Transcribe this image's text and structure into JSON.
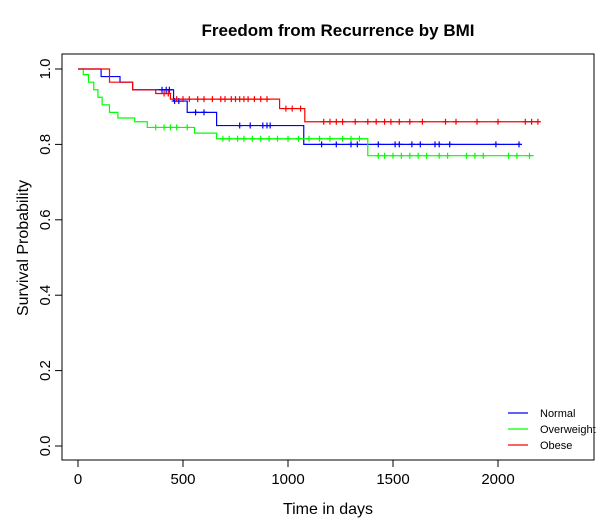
{
  "chart_data": {
    "type": "line",
    "title": "Freedom from Recurrence by BMI",
    "xlabel": "Time in days",
    "ylabel": "Survival Probability",
    "xlim": [
      0,
      2200
    ],
    "ylim": [
      0,
      1
    ],
    "x_ticks": [
      0,
      500,
      1000,
      1500,
      2000
    ],
    "x_tick_labels": [
      "0",
      "500",
      "1000",
      "1500",
      "2000"
    ],
    "y_ticks": [
      0,
      0.2,
      0.4,
      0.6,
      0.8,
      1.0
    ],
    "y_tick_labels": [
      "0.0",
      "0.2",
      "0.4",
      "0.6",
      "0.8",
      "1.0"
    ],
    "grid": false,
    "legend_position": "bottom-right",
    "series": [
      {
        "name": "Normal",
        "color": "#0000ff",
        "steps": [
          [
            0,
            1.0
          ],
          [
            110,
            0.98
          ],
          [
            200,
            0.965
          ],
          [
            260,
            0.945
          ],
          [
            455,
            0.915
          ],
          [
            520,
            0.885
          ],
          [
            660,
            0.85
          ],
          [
            850,
            0.85
          ],
          [
            1075,
            0.8
          ],
          [
            2110,
            0.8
          ]
        ],
        "censored": [
          [
            400,
            0.945
          ],
          [
            420,
            0.945
          ],
          [
            435,
            0.945
          ],
          [
            460,
            0.915
          ],
          [
            480,
            0.915
          ],
          [
            560,
            0.885
          ],
          [
            600,
            0.885
          ],
          [
            770,
            0.85
          ],
          [
            820,
            0.85
          ],
          [
            880,
            0.85
          ],
          [
            900,
            0.85
          ],
          [
            915,
            0.85
          ],
          [
            1160,
            0.8
          ],
          [
            1230,
            0.8
          ],
          [
            1300,
            0.8
          ],
          [
            1330,
            0.8
          ],
          [
            1430,
            0.8
          ],
          [
            1510,
            0.8
          ],
          [
            1530,
            0.8
          ],
          [
            1590,
            0.8
          ],
          [
            1630,
            0.8
          ],
          [
            1700,
            0.8
          ],
          [
            1720,
            0.8
          ],
          [
            1770,
            0.8
          ],
          [
            1990,
            0.8
          ],
          [
            2100,
            0.8
          ]
        ]
      },
      {
        "name": "Overweight",
        "color": "#00ff00",
        "steps": [
          [
            0,
            1.0
          ],
          [
            25,
            0.985
          ],
          [
            50,
            0.965
          ],
          [
            75,
            0.945
          ],
          [
            95,
            0.925
          ],
          [
            115,
            0.905
          ],
          [
            150,
            0.885
          ],
          [
            190,
            0.87
          ],
          [
            270,
            0.86
          ],
          [
            330,
            0.845
          ],
          [
            555,
            0.83
          ],
          [
            660,
            0.815
          ],
          [
            1380,
            0.77
          ],
          [
            2170,
            0.77
          ]
        ],
        "censored": [
          [
            370,
            0.845
          ],
          [
            410,
            0.845
          ],
          [
            440,
            0.845
          ],
          [
            470,
            0.845
          ],
          [
            520,
            0.845
          ],
          [
            690,
            0.815
          ],
          [
            720,
            0.815
          ],
          [
            760,
            0.815
          ],
          [
            790,
            0.815
          ],
          [
            830,
            0.815
          ],
          [
            870,
            0.815
          ],
          [
            910,
            0.815
          ],
          [
            950,
            0.815
          ],
          [
            1000,
            0.815
          ],
          [
            1050,
            0.815
          ],
          [
            1100,
            0.815
          ],
          [
            1150,
            0.815
          ],
          [
            1200,
            0.815
          ],
          [
            1260,
            0.815
          ],
          [
            1300,
            0.815
          ],
          [
            1340,
            0.815
          ],
          [
            1430,
            0.77
          ],
          [
            1460,
            0.77
          ],
          [
            1500,
            0.77
          ],
          [
            1540,
            0.77
          ],
          [
            1580,
            0.77
          ],
          [
            1620,
            0.77
          ],
          [
            1660,
            0.77
          ],
          [
            1720,
            0.77
          ],
          [
            1760,
            0.77
          ],
          [
            1850,
            0.77
          ],
          [
            1890,
            0.77
          ],
          [
            1930,
            0.77
          ],
          [
            2050,
            0.77
          ],
          [
            2090,
            0.77
          ],
          [
            2150,
            0.77
          ]
        ]
      },
      {
        "name": "Obese",
        "color": "#ff0000",
        "steps": [
          [
            0,
            1.0
          ],
          [
            150,
            0.965
          ],
          [
            260,
            0.945
          ],
          [
            370,
            0.935
          ],
          [
            440,
            0.92
          ],
          [
            960,
            0.895
          ],
          [
            1080,
            0.86
          ],
          [
            2200,
            0.86
          ]
        ],
        "censored": [
          [
            410,
            0.935
          ],
          [
            430,
            0.935
          ],
          [
            470,
            0.92
          ],
          [
            500,
            0.92
          ],
          [
            530,
            0.92
          ],
          [
            570,
            0.92
          ],
          [
            600,
            0.92
          ],
          [
            640,
            0.92
          ],
          [
            680,
            0.92
          ],
          [
            700,
            0.92
          ],
          [
            730,
            0.92
          ],
          [
            750,
            0.92
          ],
          [
            770,
            0.92
          ],
          [
            790,
            0.92
          ],
          [
            810,
            0.92
          ],
          [
            840,
            0.92
          ],
          [
            870,
            0.92
          ],
          [
            900,
            0.92
          ],
          [
            990,
            0.895
          ],
          [
            1020,
            0.895
          ],
          [
            1060,
            0.895
          ],
          [
            1170,
            0.86
          ],
          [
            1200,
            0.86
          ],
          [
            1230,
            0.86
          ],
          [
            1260,
            0.86
          ],
          [
            1320,
            0.86
          ],
          [
            1380,
            0.86
          ],
          [
            1420,
            0.86
          ],
          [
            1460,
            0.86
          ],
          [
            1490,
            0.86
          ],
          [
            1530,
            0.86
          ],
          [
            1580,
            0.86
          ],
          [
            1640,
            0.86
          ],
          [
            1750,
            0.86
          ],
          [
            1800,
            0.86
          ],
          [
            1900,
            0.86
          ],
          [
            2000,
            0.86
          ],
          [
            2130,
            0.86
          ],
          [
            2160,
            0.86
          ],
          [
            2190,
            0.86
          ]
        ]
      }
    ]
  }
}
